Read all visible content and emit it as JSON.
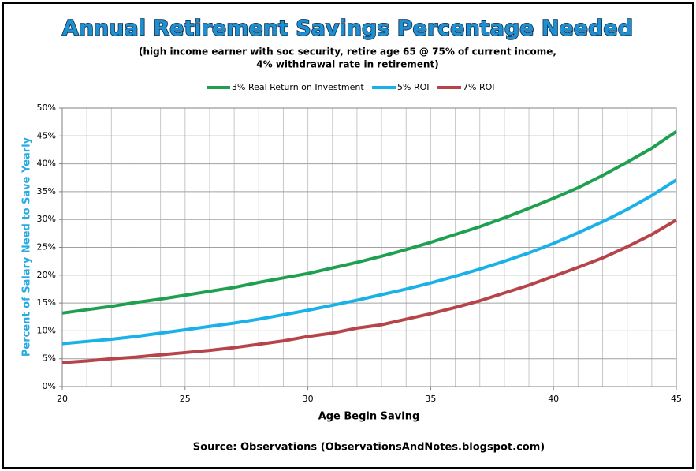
{
  "chart_data": {
    "type": "line",
    "title": "Annual Retirement Savings Percentage Needed",
    "subtitle": [
      "(high income earner with soc security, retire age 65 @ 75% of current income,",
      "4% withdrawal rate in retirement)"
    ],
    "x_label": "Age Begin Saving",
    "y_label": "Percent of Salary Need to Save Yearly",
    "source": "Source: Observations (ObservationsAndNotes.blogspot.com)",
    "x": [
      20,
      21,
      22,
      23,
      24,
      25,
      26,
      27,
      28,
      29,
      30,
      31,
      32,
      33,
      34,
      35,
      36,
      37,
      38,
      39,
      40,
      41,
      42,
      43,
      44,
      45
    ],
    "xlim": [
      20,
      45
    ],
    "xticks": [
      20,
      25,
      30,
      35,
      40,
      45
    ],
    "ylim": [
      0,
      50
    ],
    "yticks": [
      {
        "value": 0,
        "label": "0%"
      },
      {
        "value": 5,
        "label": "5%"
      },
      {
        "value": 10,
        "label": "10%"
      },
      {
        "value": 15,
        "label": "15%"
      },
      {
        "value": 20,
        "label": "20%"
      },
      {
        "value": 25,
        "label": "25%"
      },
      {
        "value": 30,
        "label": "30%"
      },
      {
        "value": 35,
        "label": "35%"
      },
      {
        "value": 40,
        "label": "40%"
      },
      {
        "value": 45,
        "label": "45%"
      },
      {
        "value": 50,
        "label": "50%"
      }
    ],
    "grid": true,
    "legend": "top",
    "series": [
      {
        "name": "3% Real Return on Investment",
        "color": "#1fa050",
        "values": [
          13.2,
          13.8,
          14.4,
          15.1,
          15.7,
          16.4,
          17.1,
          17.8,
          18.7,
          19.5,
          20.3,
          21.3,
          22.3,
          23.4,
          24.6,
          25.9,
          27.3,
          28.7,
          30.3,
          32.0,
          33.8,
          35.7,
          37.9,
          40.3,
          42.8,
          45.8
        ]
      },
      {
        "name": "5% ROI",
        "color": "#1ab0e8",
        "values": [
          7.7,
          8.1,
          8.5,
          9.0,
          9.6,
          10.2,
          10.8,
          11.4,
          12.1,
          12.9,
          13.7,
          14.6,
          15.5,
          16.5,
          17.5,
          18.6,
          19.8,
          21.1,
          22.5,
          24.0,
          25.7,
          27.6,
          29.6,
          31.8,
          34.3,
          37.1
        ]
      },
      {
        "name": "7% ROI",
        "color": "#b5454a",
        "values": [
          4.3,
          4.6,
          5.0,
          5.3,
          5.7,
          6.1,
          6.5,
          7.0,
          7.6,
          8.2,
          9.0,
          9.6,
          10.5,
          11.1,
          12.1,
          13.1,
          14.2,
          15.4,
          16.8,
          18.2,
          19.8,
          21.4,
          23.1,
          25.1,
          27.3,
          29.9
        ]
      }
    ]
  }
}
